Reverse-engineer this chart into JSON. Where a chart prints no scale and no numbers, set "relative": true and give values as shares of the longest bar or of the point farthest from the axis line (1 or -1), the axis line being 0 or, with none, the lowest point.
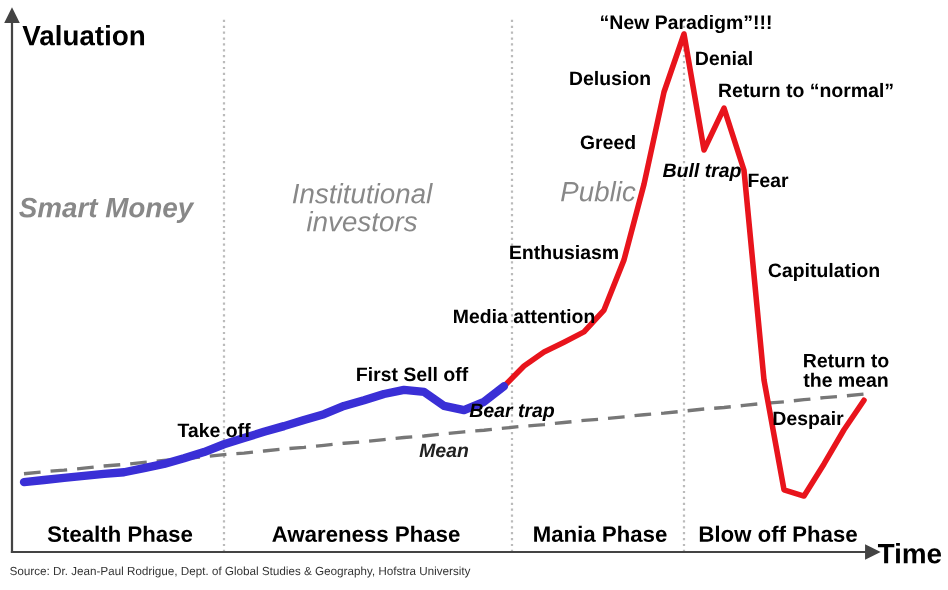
{
  "chart_data": {
    "type": "line",
    "relative": true,
    "xlabel": "Time",
    "ylabel": "Valuation",
    "categories": [
      null,
      null,
      null,
      null,
      null,
      null,
      null,
      null,
      null,
      null,
      null,
      null,
      null,
      null,
      null,
      null,
      null,
      null,
      null,
      null,
      null,
      null,
      null,
      null,
      null,
      null,
      null,
      null,
      null,
      null,
      null,
      null,
      null,
      null,
      null,
      null,
      null,
      null,
      null,
      null,
      null,
      null,
      null
    ],
    "series": [
      {
        "color": "#3a2fd6",
        "values": [
          0.135,
          0.139,
          0.143,
          0.147,
          0.151,
          0.154,
          0.162,
          0.17,
          0.181,
          0.193,
          0.208,
          0.22,
          0.232,
          0.243,
          0.255,
          0.266,
          0.282,
          0.293,
          0.305,
          0.313,
          0.309,
          0.282,
          0.274,
          0.29,
          0.32,
          null,
          null,
          null,
          null,
          null,
          null,
          null,
          null,
          null,
          null,
          null,
          null,
          null,
          null,
          null,
          null,
          null,
          null
        ]
      },
      {
        "color": "#e8141c",
        "values": [
          null,
          null,
          null,
          null,
          null,
          null,
          null,
          null,
          null,
          null,
          null,
          null,
          null,
          null,
          null,
          null,
          null,
          null,
          null,
          null,
          null,
          null,
          null,
          null,
          0.32,
          0.359,
          0.386,
          0.405,
          0.425,
          0.467,
          0.564,
          0.71,
          0.888,
          1.0,
          0.776,
          0.857,
          0.737,
          0.332,
          0.12,
          0.108,
          0.17,
          0.236,
          0.293
        ]
      },
      {
        "name": "Mean",
        "color": "#777777",
        "line_style": "dashed",
        "values": [
          0.151,
          0.155,
          0.158,
          0.162,
          0.166,
          0.169,
          0.173,
          0.177,
          0.18,
          0.184,
          0.188,
          0.191,
          0.195,
          0.199,
          0.202,
          0.206,
          0.21,
          0.213,
          0.217,
          0.221,
          0.224,
          0.228,
          0.232,
          0.235,
          0.239,
          0.243,
          0.246,
          0.25,
          0.254,
          0.257,
          0.261,
          0.265,
          0.268,
          0.272,
          0.276,
          0.279,
          0.283,
          0.287,
          0.29,
          0.294,
          0.298,
          0.301,
          0.305
        ]
      }
    ],
    "annotations": [
      "Smart Money",
      "Institutional\ninvestors",
      "Public",
      "Take off",
      "First Sell off",
      "Bear trap",
      "Media attention",
      "Enthusiasm",
      "Greed",
      "Delusion",
      "“New Paradigm”!!!",
      "Denial",
      "Bull trap",
      "Return to “normal”",
      "Fear",
      "Capitulation",
      "Despair",
      "Return to\nthe mean",
      "Stealth Phase",
      "Awareness Phase",
      "Mania Phase",
      "Blow off Phase",
      "Source: Dr. Jean-Paul Rodrigue, Dept. of Global Studies & Geography, Hofstra University"
    ]
  }
}
